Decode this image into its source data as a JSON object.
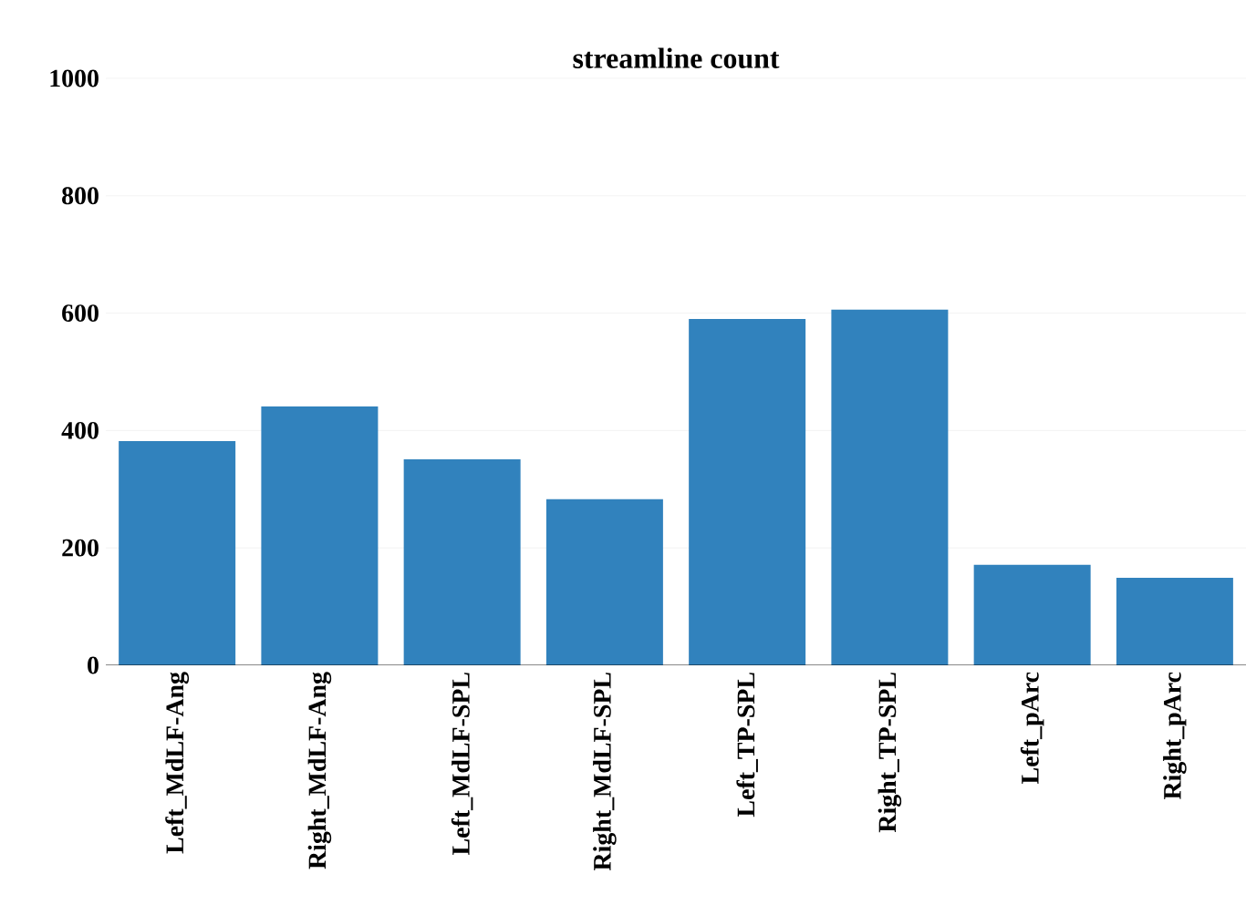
{
  "chart_data": {
    "type": "bar",
    "title": "streamline count",
    "categories": [
      "Left_MdLF-Ang",
      "Right_MdLF-Ang",
      "Left_MdLF-SPL",
      "Right_MdLF-SPL",
      "Left_TP-SPL",
      "Right_TP-SPL",
      "Left_pArc",
      "Right_pArc"
    ],
    "values": [
      382,
      441,
      351,
      283,
      590,
      606,
      171,
      149
    ],
    "color": "#3182bd",
    "ylim": [
      0,
      1000
    ],
    "yticks": [
      0,
      200,
      400,
      600,
      800,
      1000
    ],
    "grid": "y"
  }
}
